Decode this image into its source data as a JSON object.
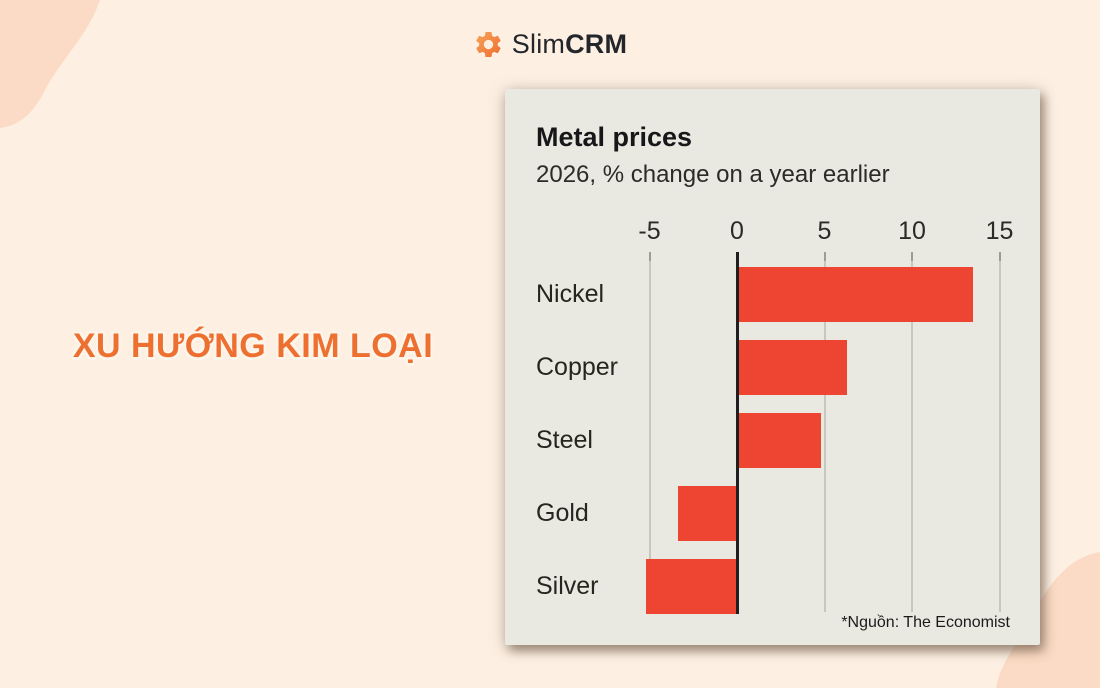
{
  "page": {
    "background_color": "#FDF0E3",
    "blob_color": "#FBDBC5"
  },
  "header": {
    "logo": {
      "brand_prefix": "Slim",
      "brand_suffix": "CRM",
      "gear_color_start": "#F6A35B",
      "gear_color_end": "#ED6E2E"
    }
  },
  "headline": {
    "text": "XU HƯỚNG KIM LOẠI",
    "color": "#EE7031"
  },
  "chart_card": {
    "background_color": "#E9E8E1",
    "title": "Metal prices",
    "subtitle": "2026, % change on a year earlier",
    "source": "*Nguồn: The Economist"
  },
  "chart_data": {
    "type": "bar",
    "orientation": "horizontal",
    "title": "Metal prices",
    "subtitle": "2026, % change on a year earlier",
    "categories": [
      "Nickel",
      "Copper",
      "Steel",
      "Gold",
      "Silver"
    ],
    "values": [
      13.4,
      6.2,
      4.7,
      -3.3,
      -5.1
    ],
    "ticks": [
      -5,
      0,
      5,
      10,
      15
    ],
    "xlim": [
      -7.5,
      16
    ],
    "grid": true,
    "bar_color": "#EE4533",
    "axis_color": "#1F1F1D",
    "gridline_color": "#C8C7BF",
    "legend": "none",
    "source": "*Nguồn: The Economist"
  }
}
